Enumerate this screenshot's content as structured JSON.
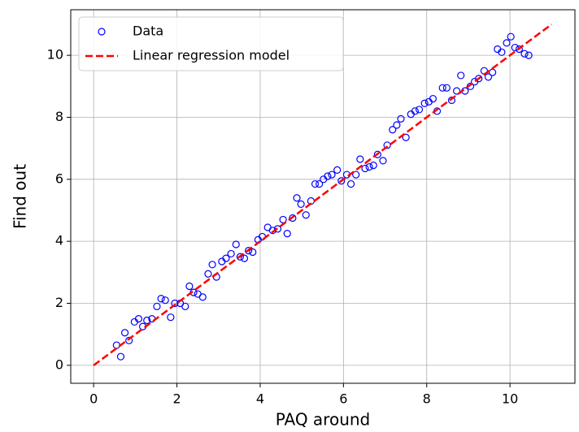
{
  "chart_data": {
    "type": "scatter",
    "xlabel": "PAQ around",
    "ylabel": "Find out",
    "xlim": [
      -0.55,
      11.56
    ],
    "ylim": [
      -0.58,
      11.47
    ],
    "xticks": [
      0,
      2,
      4,
      6,
      8,
      10
    ],
    "yticks": [
      0,
      2,
      4,
      6,
      8,
      10
    ],
    "grid": true,
    "legend": "upper left",
    "series": [
      {
        "name": "Data",
        "type": "scatter",
        "color": "#0000ff",
        "x": [
          0.55,
          0.65,
          0.75,
          0.85,
          0.98,
          1.08,
          1.18,
          1.28,
          1.4,
          1.52,
          1.62,
          1.72,
          1.85,
          1.95,
          2.08,
          2.2,
          2.3,
          2.4,
          2.5,
          2.62,
          2.75,
          2.85,
          2.95,
          3.08,
          3.18,
          3.3,
          3.42,
          3.52,
          3.62,
          3.72,
          3.82,
          3.95,
          4.05,
          4.18,
          4.3,
          4.42,
          4.55,
          4.65,
          4.78,
          4.88,
          4.98,
          5.1,
          5.22,
          5.32,
          5.42,
          5.52,
          5.62,
          5.72,
          5.85,
          5.95,
          6.08,
          6.18,
          6.3,
          6.4,
          6.52,
          6.62,
          6.72,
          6.82,
          6.95,
          7.05,
          7.18,
          7.28,
          7.38,
          7.5,
          7.62,
          7.72,
          7.82,
          7.95,
          8.05,
          8.15,
          8.25,
          8.38,
          8.48,
          8.6,
          8.72,
          8.82,
          8.92,
          9.05,
          9.15,
          9.25,
          9.38,
          9.48,
          9.58,
          9.7,
          9.8,
          9.92,
          10.02,
          10.12,
          10.22,
          10.35,
          10.45
        ],
        "values": [
          0.65,
          0.28,
          1.05,
          0.8,
          1.4,
          1.5,
          1.25,
          1.45,
          1.5,
          1.9,
          2.15,
          2.1,
          1.55,
          2.0,
          2.0,
          1.9,
          2.55,
          2.35,
          2.3,
          2.2,
          2.95,
          3.25,
          2.85,
          3.35,
          3.45,
          3.6,
          3.9,
          3.5,
          3.45,
          3.7,
          3.65,
          4.05,
          4.15,
          4.45,
          4.35,
          4.4,
          4.7,
          4.25,
          4.75,
          5.4,
          5.2,
          4.85,
          5.3,
          5.85,
          5.85,
          6.0,
          6.1,
          6.15,
          6.3,
          5.95,
          6.15,
          5.85,
          6.15,
          6.65,
          6.35,
          6.4,
          6.45,
          6.8,
          6.6,
          7.1,
          7.6,
          7.75,
          7.95,
          7.35,
          8.1,
          8.2,
          8.25,
          8.45,
          8.5,
          8.6,
          8.2,
          8.95,
          8.95,
          8.55,
          8.85,
          9.35,
          8.85,
          9.0,
          9.15,
          9.25,
          9.5,
          9.3,
          9.45,
          10.2,
          10.1,
          10.4,
          10.6,
          10.25,
          10.2,
          10.05,
          10.0
        ]
      },
      {
        "name": "Linear regression model",
        "type": "line",
        "color": "#ff0000",
        "x": [
          0,
          11
        ],
        "values": [
          0,
          11
        ]
      }
    ]
  }
}
